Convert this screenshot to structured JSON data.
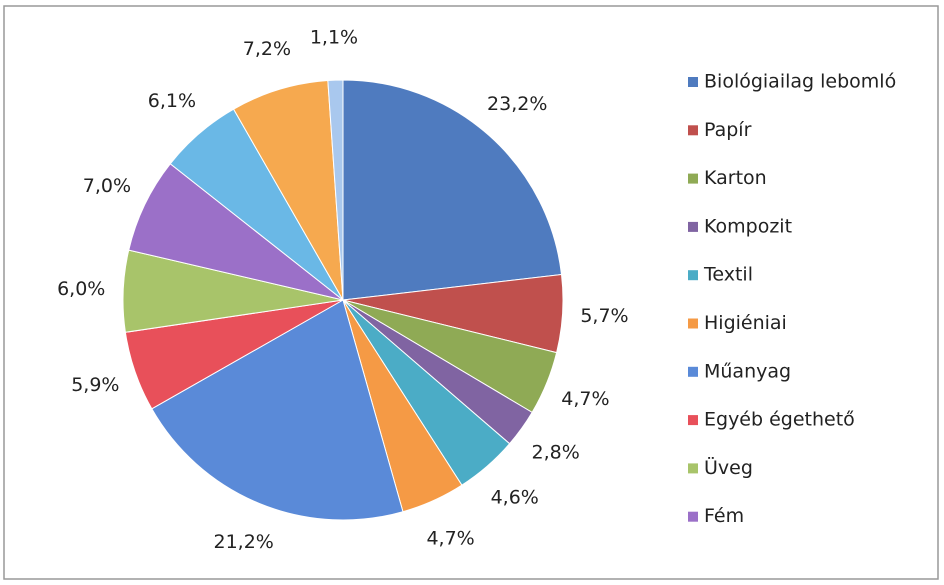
{
  "chart_data": {
    "type": "pie",
    "categories": [
      "Biológiailag lebomló",
      "Papír",
      "Karton",
      "Kompozit",
      "Textil",
      "Higiéniai",
      "Műanyag",
      "Egyéb égethető",
      "Üveg",
      "Fém",
      null,
      null,
      null
    ],
    "values": [
      23.2,
      5.7,
      4.7,
      2.8,
      4.6,
      4.7,
      21.2,
      5.9,
      6.0,
      7.0,
      6.1,
      7.2,
      1.1
    ],
    "value_labels": [
      "23,2%",
      "5,7%",
      "4,7%",
      "2,8%",
      "4,6%",
      "4,7%",
      "21,2%",
      "5,9%",
      "6,0%",
      "7,0%",
      "6,1%",
      "7,2%",
      "1,1%"
    ],
    "colors": [
      "#4f7bbf",
      "#c0504d",
      "#8faa55",
      "#8064a2",
      "#4bacc6",
      "#f59a45",
      "#5a8ad8",
      "#e8505a",
      "#a8c46a",
      "#9b70c8",
      "#6ab8e6",
      "#f6a94f",
      "#a9c8ee"
    ]
  }
}
